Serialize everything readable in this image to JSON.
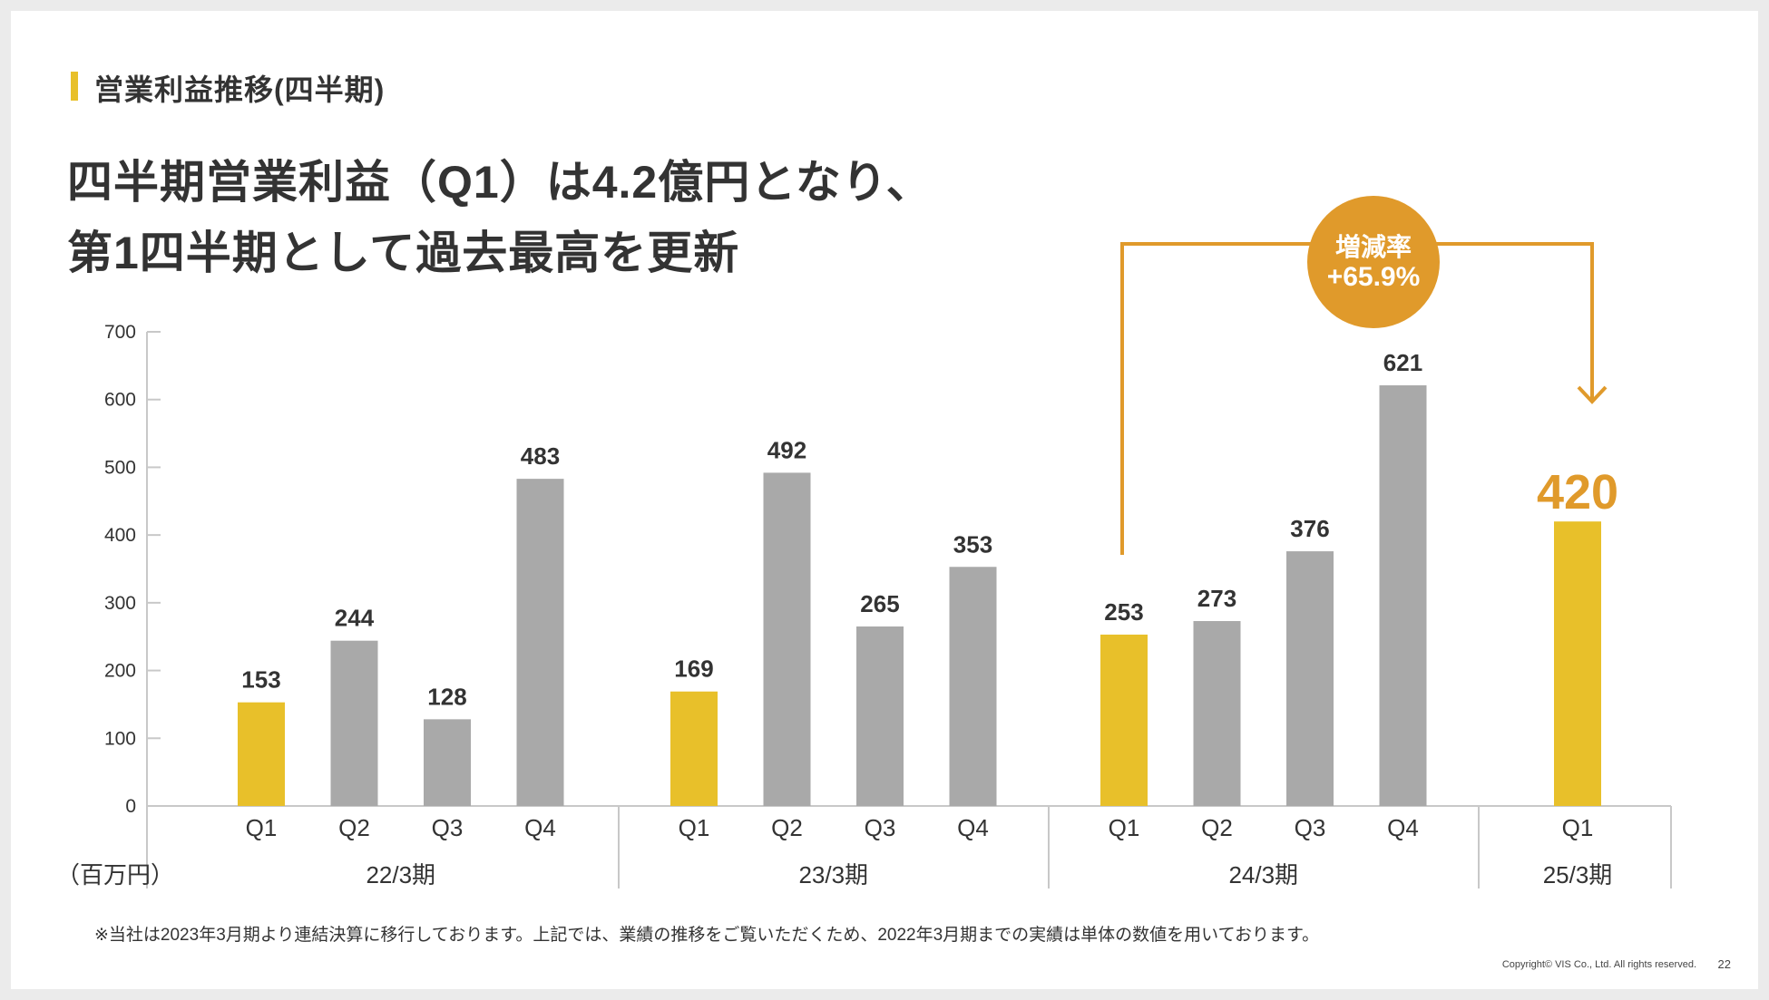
{
  "section": {
    "title": "営業利益推移(四半期)"
  },
  "headline": {
    "line1": "四半期営業利益（Q1）は4.2億円となり、",
    "line2": "第1四半期として過去最高を更新"
  },
  "chart_data": {
    "type": "bar",
    "unit_label": "（百万円）",
    "ylim": [
      0,
      700
    ],
    "yticks": [
      0,
      100,
      200,
      300,
      400,
      500,
      600,
      700
    ],
    "groups": [
      {
        "period": "22/3期",
        "bars": [
          {
            "quarter": "Q1",
            "value": 153,
            "label": "153",
            "highlight": true
          },
          {
            "quarter": "Q2",
            "value": 244,
            "label": "244",
            "highlight": false
          },
          {
            "quarter": "Q3",
            "value": 128,
            "label": "128",
            "highlight": false
          },
          {
            "quarter": "Q4",
            "value": 483,
            "label": "483",
            "highlight": false
          }
        ]
      },
      {
        "period": "23/3期",
        "bars": [
          {
            "quarter": "Q1",
            "value": 169,
            "label": "169",
            "highlight": true
          },
          {
            "quarter": "Q2",
            "value": 492,
            "label": "492",
            "highlight": false
          },
          {
            "quarter": "Q3",
            "value": 265,
            "label": "265",
            "highlight": false
          },
          {
            "quarter": "Q4",
            "value": 353,
            "label": "353",
            "highlight": false
          }
        ]
      },
      {
        "period": "24/3期",
        "bars": [
          {
            "quarter": "Q1",
            "value": 253,
            "label": "253",
            "highlight": true
          },
          {
            "quarter": "Q2",
            "value": 273,
            "label": "273",
            "highlight": false
          },
          {
            "quarter": "Q3",
            "value": 376,
            "label": "376",
            "highlight": false
          },
          {
            "quarter": "Q4",
            "value": 621,
            "label": "621",
            "highlight": false
          }
        ]
      },
      {
        "period": "25/3期",
        "bars": [
          {
            "quarter": "Q1",
            "value": 420,
            "label": "420",
            "highlight": true,
            "emphasis": true
          }
        ]
      }
    ],
    "annotation": {
      "line1": "増減率",
      "line2": "+65.9%"
    }
  },
  "colors": {
    "highlight": "#e8c02a",
    "bar": "#a9a9a9",
    "accent": "#e09a2b",
    "axis": "#c8c8c8",
    "text": "#333333"
  },
  "footnote": "※当社は2023年3月期より連結決算に移行しております。上記では、業績の推移をご覧いただくため、2022年3月期までの実績は単体の数値を用いております。",
  "copyright": "Copyright© VIS Co., Ltd. All rights reserved.",
  "page_number": "22"
}
